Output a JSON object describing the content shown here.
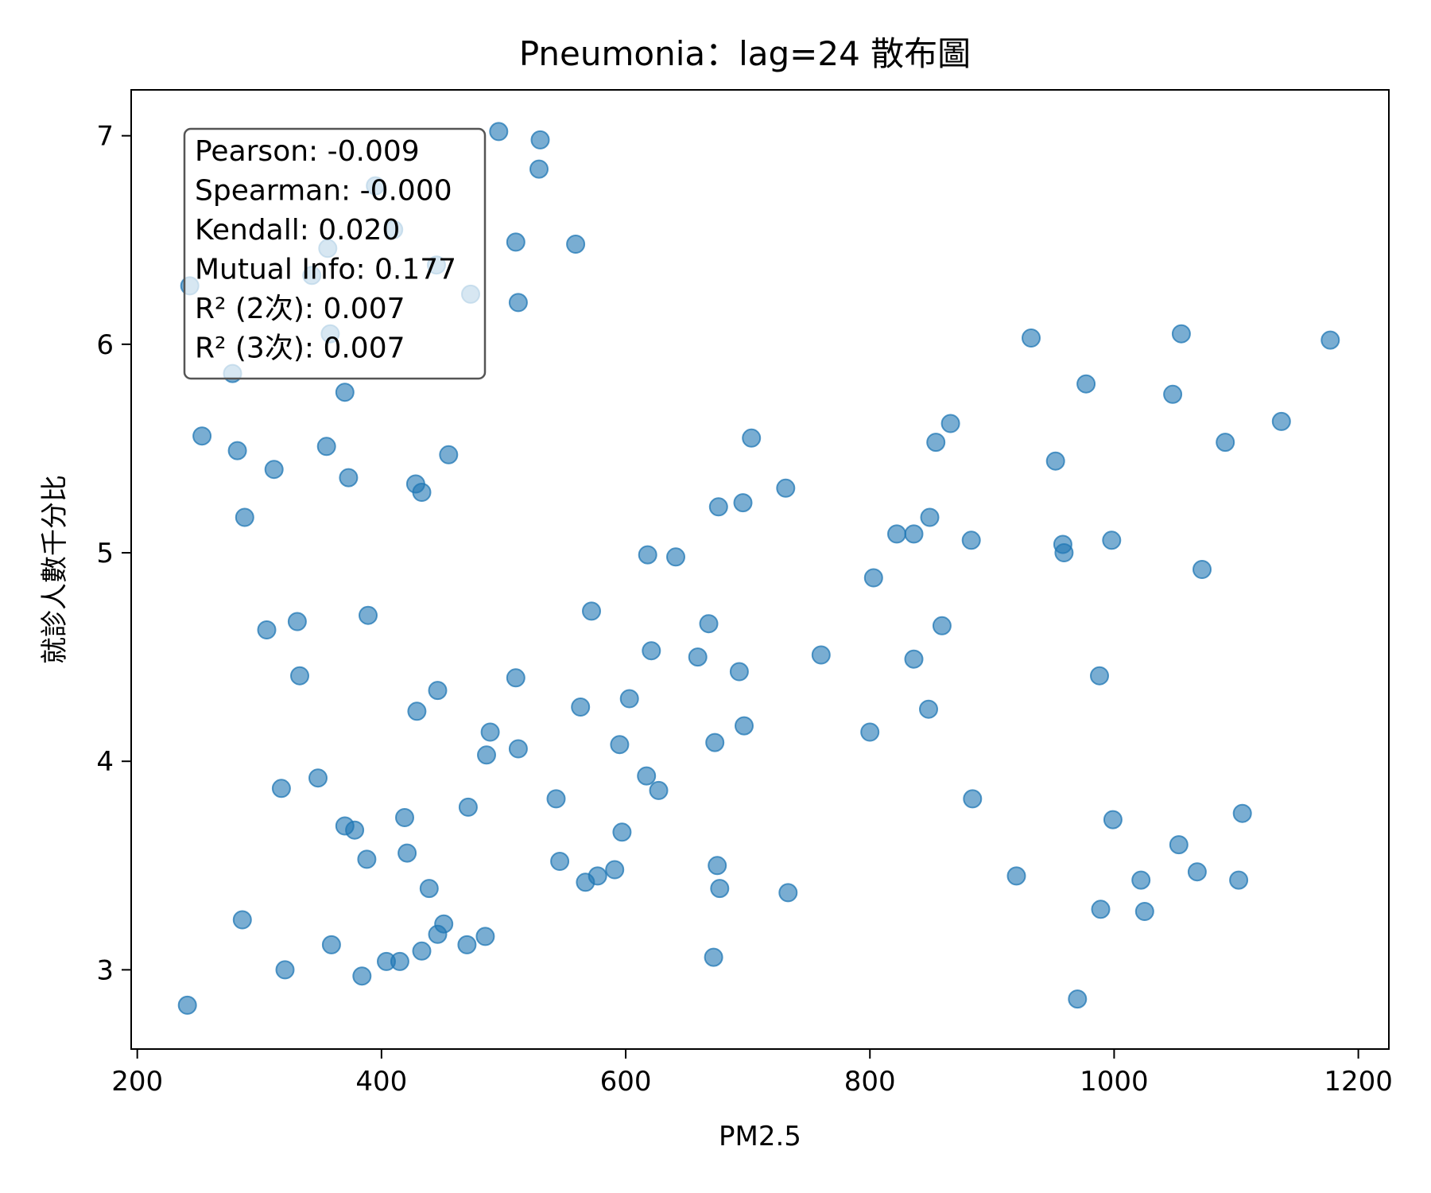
{
  "chart_data": {
    "type": "scatter",
    "title": "Pneumonia：lag=24 散布圖",
    "xlabel": "PM2.5",
    "ylabel": "就診人數千分比",
    "xlim": [
      195,
      1225
    ],
    "ylim": [
      2.62,
      7.22
    ],
    "xticks": [
      200,
      400,
      600,
      800,
      1000,
      1200
    ],
    "xtick_labels": [
      "200",
      "400",
      "600",
      "800",
      "1000",
      "1200"
    ],
    "yticks": [
      3,
      4,
      5,
      6,
      7
    ],
    "ytick_labels": [
      "3",
      "4",
      "5",
      "6",
      "7"
    ],
    "grid": false,
    "point_color": "#1f77b4",
    "stats_box": {
      "position": "top-left",
      "lines": [
        "Pearson: -0.009",
        "Spearman: -0.000",
        "Kendall: 0.020",
        "Mutual Info: 0.177",
        "R² (2次): 0.007",
        "R² (3次): 0.007"
      ]
    },
    "points": [
      [
        243,
        6.28
      ],
      [
        253,
        5.56
      ],
      [
        278,
        5.86
      ],
      [
        282,
        5.49
      ],
      [
        288,
        5.17
      ],
      [
        312,
        5.4
      ],
      [
        343,
        6.33
      ],
      [
        356,
        6.46
      ],
      [
        358,
        6.05
      ],
      [
        370,
        5.77
      ],
      [
        373,
        5.36
      ],
      [
        355,
        5.51
      ],
      [
        395,
        6.76
      ],
      [
        410,
        6.55
      ],
      [
        428,
        5.33
      ],
      [
        433,
        5.29
      ],
      [
        445,
        6.38
      ],
      [
        455,
        5.47
      ],
      [
        473,
        6.24
      ],
      [
        496,
        7.02
      ],
      [
        530,
        6.98
      ],
      [
        529,
        6.84
      ],
      [
        510,
        6.49
      ],
      [
        512,
        6.2
      ],
      [
        559,
        6.48
      ],
      [
        306,
        4.63
      ],
      [
        331,
        4.67
      ],
      [
        333,
        4.41
      ],
      [
        389,
        4.7
      ],
      [
        318,
        3.87
      ],
      [
        348,
        3.92
      ],
      [
        370,
        3.69
      ],
      [
        378,
        3.67
      ],
      [
        388,
        3.53
      ],
      [
        419,
        3.73
      ],
      [
        421,
        3.56
      ],
      [
        429,
        4.24
      ],
      [
        446,
        4.34
      ],
      [
        439,
        3.39
      ],
      [
        446,
        3.17
      ],
      [
        451,
        3.22
      ],
      [
        433,
        3.09
      ],
      [
        471,
        3.78
      ],
      [
        470,
        3.12
      ],
      [
        485,
        3.16
      ],
      [
        486,
        4.03
      ],
      [
        489,
        4.14
      ],
      [
        510,
        4.4
      ],
      [
        512,
        4.06
      ],
      [
        286,
        3.24
      ],
      [
        321,
        3.0
      ],
      [
        359,
        3.12
      ],
      [
        384,
        2.97
      ],
      [
        404,
        3.04
      ],
      [
        415,
        3.04
      ],
      [
        241,
        2.83
      ],
      [
        543,
        3.82
      ],
      [
        546,
        3.52
      ],
      [
        563,
        4.26
      ],
      [
        567,
        3.42
      ],
      [
        572,
        4.72
      ],
      [
        577,
        3.45
      ],
      [
        591,
        3.48
      ],
      [
        595,
        4.08
      ],
      [
        597,
        3.66
      ],
      [
        603,
        4.3
      ],
      [
        618,
        4.99
      ],
      [
        617,
        3.93
      ],
      [
        621,
        4.53
      ],
      [
        627,
        3.86
      ],
      [
        641,
        4.98
      ],
      [
        659,
        4.5
      ],
      [
        668,
        4.66
      ],
      [
        676,
        5.22
      ],
      [
        673,
        4.09
      ],
      [
        675,
        3.5
      ],
      [
        677,
        3.39
      ],
      [
        672,
        3.06
      ],
      [
        693,
        4.43
      ],
      [
        696,
        5.24
      ],
      [
        697,
        4.17
      ],
      [
        703,
        5.55
      ],
      [
        731,
        5.31
      ],
      [
        733,
        3.37
      ],
      [
        760,
        4.51
      ],
      [
        800,
        4.14
      ],
      [
        803,
        4.88
      ],
      [
        822,
        5.09
      ],
      [
        836,
        5.09
      ],
      [
        836,
        4.49
      ],
      [
        848,
        4.25
      ],
      [
        849,
        5.17
      ],
      [
        854,
        5.53
      ],
      [
        859,
        4.65
      ],
      [
        866,
        5.62
      ],
      [
        883,
        5.06
      ],
      [
        884,
        3.82
      ],
      [
        920,
        3.45
      ],
      [
        932,
        6.03
      ],
      [
        952,
        5.44
      ],
      [
        958,
        5.04
      ],
      [
        959,
        5.0
      ],
      [
        977,
        5.81
      ],
      [
        988,
        4.41
      ],
      [
        989,
        3.29
      ],
      [
        970,
        2.86
      ],
      [
        998,
        5.06
      ],
      [
        999,
        3.72
      ],
      [
        1022,
        3.43
      ],
      [
        1025,
        3.28
      ],
      [
        1048,
        5.76
      ],
      [
        1053,
        3.6
      ],
      [
        1055,
        6.05
      ],
      [
        1068,
        3.47
      ],
      [
        1072,
        4.92
      ],
      [
        1091,
        5.53
      ],
      [
        1102,
        3.43
      ],
      [
        1105,
        3.75
      ],
      [
        1137,
        5.63
      ],
      [
        1177,
        6.02
      ]
    ]
  }
}
